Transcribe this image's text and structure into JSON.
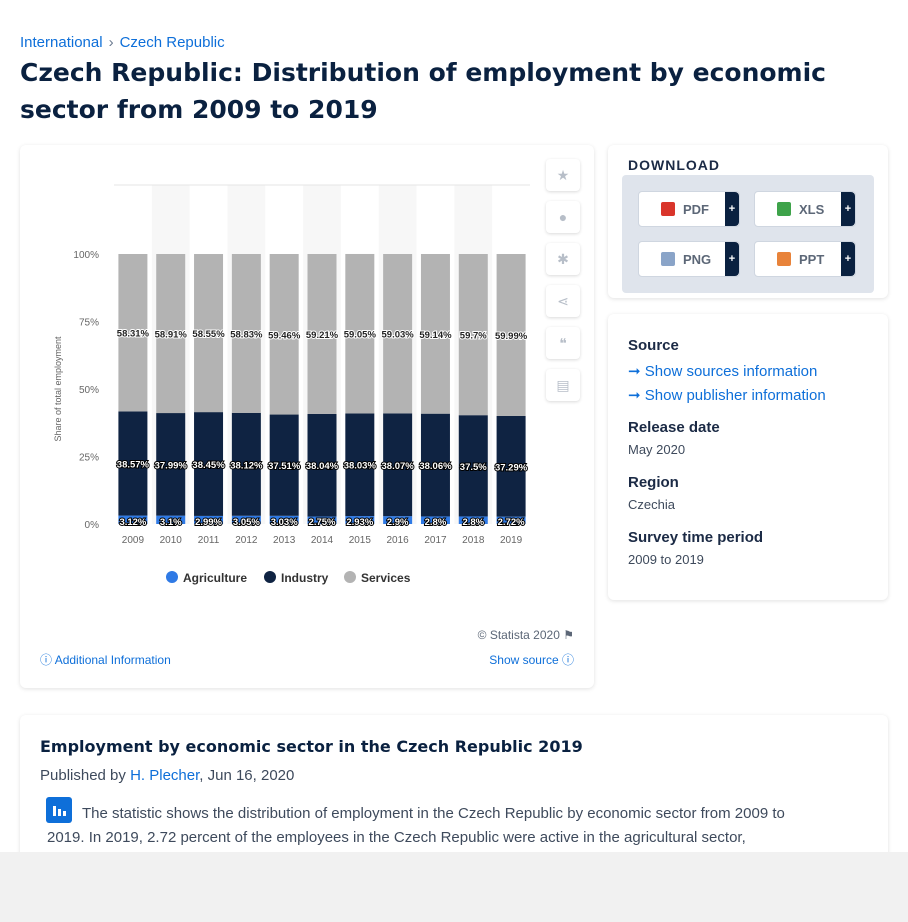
{
  "breadcrumb": [
    "International",
    "Czech Republic"
  ],
  "title": "Czech Republic: Distribution of employment by economic sector from 2009 to 2019",
  "chart_data": {
    "type": "bar",
    "stacked": true,
    "categories": [
      "2009",
      "2010",
      "2011",
      "2012",
      "2013",
      "2014",
      "2015",
      "2016",
      "2017",
      "2018",
      "2019"
    ],
    "series": [
      {
        "name": "Agriculture",
        "color": "#2f7ae5",
        "values": [
          3.12,
          3.1,
          2.99,
          3.05,
          3.03,
          2.75,
          2.93,
          2.9,
          2.8,
          2.8,
          2.72
        ],
        "labels": [
          "3.12%",
          "3.1%",
          "2.99%",
          "3.05%",
          "3.03%",
          "2.75%",
          "2.93%",
          "2.9%",
          "2.8%",
          "2.8%",
          "2.72%"
        ]
      },
      {
        "name": "Industry",
        "color": "#0f2342",
        "values": [
          38.57,
          37.99,
          38.45,
          38.12,
          37.51,
          38.04,
          38.03,
          38.07,
          38.06,
          37.5,
          37.29
        ],
        "labels": [
          "38.57%",
          "37.99%",
          "38.45%",
          "38.12%",
          "37.51%",
          "38.04%",
          "38.03%",
          "38.07%",
          "38.06%",
          "37.5%",
          "37.29%"
        ]
      },
      {
        "name": "Services",
        "color": "#b3b3b3",
        "values": [
          58.31,
          58.91,
          58.55,
          58.83,
          59.46,
          59.21,
          59.05,
          59.03,
          59.14,
          59.7,
          59.99
        ],
        "labels": [
          "58.31%",
          "58.91%",
          "58.55%",
          "58.83%",
          "59.46%",
          "59.21%",
          "59.05%",
          "59.03%",
          "59.14%",
          "59.7%",
          "59.99%"
        ]
      }
    ],
    "ylabel": "Share of total employment",
    "ylim": [
      0,
      100
    ],
    "yticks": [
      "0%",
      "25%",
      "50%",
      "75%",
      "100%"
    ],
    "legend": "bottom"
  },
  "chart_footer": {
    "copyright": "© Statista 2020",
    "additional_info": "Additional Information",
    "show_source": "Show source"
  },
  "download": {
    "title": "DOWNLOAD",
    "buttons": [
      "PDF",
      "XLS",
      "PNG",
      "PPT"
    ],
    "plus": "+"
  },
  "info": {
    "source_label": "Source",
    "sources_link": "Show sources information",
    "publisher_link": "Show publisher information",
    "release_label": "Release date",
    "release_value": "May 2020",
    "region_label": "Region",
    "region_value": "Czechia",
    "period_label": "Survey time period",
    "period_value": "2009 to 2019"
  },
  "description": {
    "title": "Employment by economic sector in the Czech Republic 2019",
    "published_prefix": "Published by",
    "author": "H. Plecher",
    "date": ", Jun 16, 2020",
    "text": "The statistic shows the distribution of employment in the Czech Republic by economic sector from 2009 to 2019. In 2019, 2.72 percent of the employees in the Czech Republic were active in the agricultural sector,"
  }
}
